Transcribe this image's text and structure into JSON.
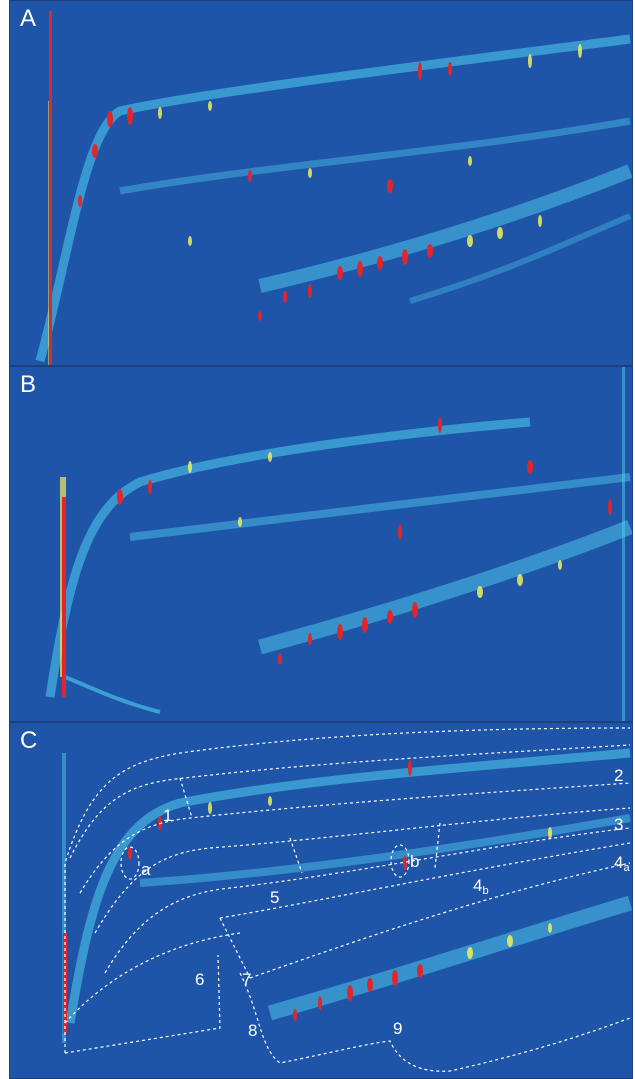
{
  "panels": [
    {
      "label": "A"
    },
    {
      "label": "B"
    },
    {
      "label": "C"
    }
  ],
  "regions": [
    "1",
    "2",
    "3",
    "4",
    "5",
    "6",
    "7",
    "8",
    "9"
  ],
  "region_4_subscripts": [
    "a",
    "b"
  ],
  "markers": [
    "a",
    "b"
  ],
  "colors": {
    "background": "#1f55a8",
    "band": "#4fd0f0",
    "peak_mid": "#f2ee5a",
    "peak_high": "#e0262a",
    "outline": "#ffffff"
  }
}
